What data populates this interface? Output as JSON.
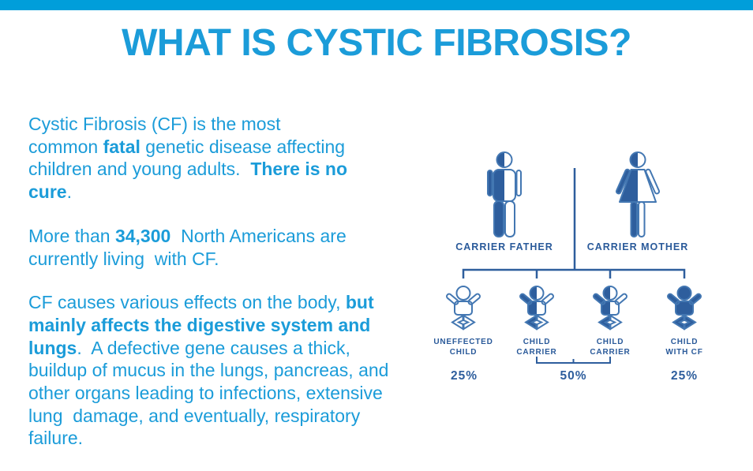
{
  "colors": {
    "accent_cyan": "#1b9cd9",
    "top_bar": "#009eda",
    "diagram_blue": "#2e5e9d",
    "diagram_outline": "#4377b2",
    "diagram_label": "#2a5a9a"
  },
  "title": {
    "text": "WHAT IS CYSTIC FIBROSIS?"
  },
  "body": {
    "paragraphs": [
      {
        "lines": [
          [
            {
              "t": "Cystic Fibrosis (CF) is the most",
              "b": false
            }
          ],
          [
            {
              "t": "common ",
              "b": false
            },
            {
              "t": "fatal",
              "b": true
            },
            {
              "t": " genetic disease affecting",
              "b": false
            }
          ],
          [
            {
              "t": "children and young adults.  ",
              "b": false
            },
            {
              "t": "There is no",
              "b": true
            }
          ],
          [
            {
              "t": "cure",
              "b": true
            },
            {
              "t": ".",
              "b": false
            }
          ]
        ]
      },
      {
        "lines": [
          [
            {
              "t": "More than ",
              "b": false
            },
            {
              "t": "34,300",
              "b": true
            },
            {
              "t": "  North Americans are",
              "b": false
            }
          ],
          [
            {
              "t": "currently living  with CF.",
              "b": false
            }
          ]
        ]
      },
      {
        "lines": [
          [
            {
              "t": "CF causes various effects on the body, ",
              "b": false
            },
            {
              "t": "but",
              "b": true
            }
          ],
          [
            {
              "t": "mainly affects the digestive system and",
              "b": true
            }
          ],
          [
            {
              "t": "lungs",
              "b": true
            },
            {
              "t": ".  A defective gene causes a thick,",
              "b": false
            }
          ],
          [
            {
              "t": "buildup of mucus in the lungs, pancreas, and",
              "b": false
            }
          ],
          [
            {
              "t": "other organs leading to infections, extensive",
              "b": false
            }
          ],
          [
            {
              "t": "lung  damage, and eventually, respiratory",
              "b": false
            }
          ],
          [
            {
              "t": "failure.",
              "b": false
            }
          ]
        ]
      }
    ]
  },
  "diagram": {
    "parents": [
      {
        "label": "CARRIER FATHER",
        "type": "male-carrier"
      },
      {
        "label": "CARRIER MOTHER",
        "type": "female-carrier"
      }
    ],
    "children": [
      {
        "label1": "UNEFFECTED",
        "label2": "CHILD",
        "status": "unaffected"
      },
      {
        "label1": "CHILD",
        "label2": "CARRIER",
        "status": "carrier"
      },
      {
        "label1": "CHILD",
        "label2": "CARRIER",
        "status": "carrier"
      },
      {
        "label1": "CHILD",
        "label2": "WITH CF",
        "status": "with-cf"
      }
    ],
    "percentages": [
      "25%",
      "50%",
      "25%"
    ]
  }
}
